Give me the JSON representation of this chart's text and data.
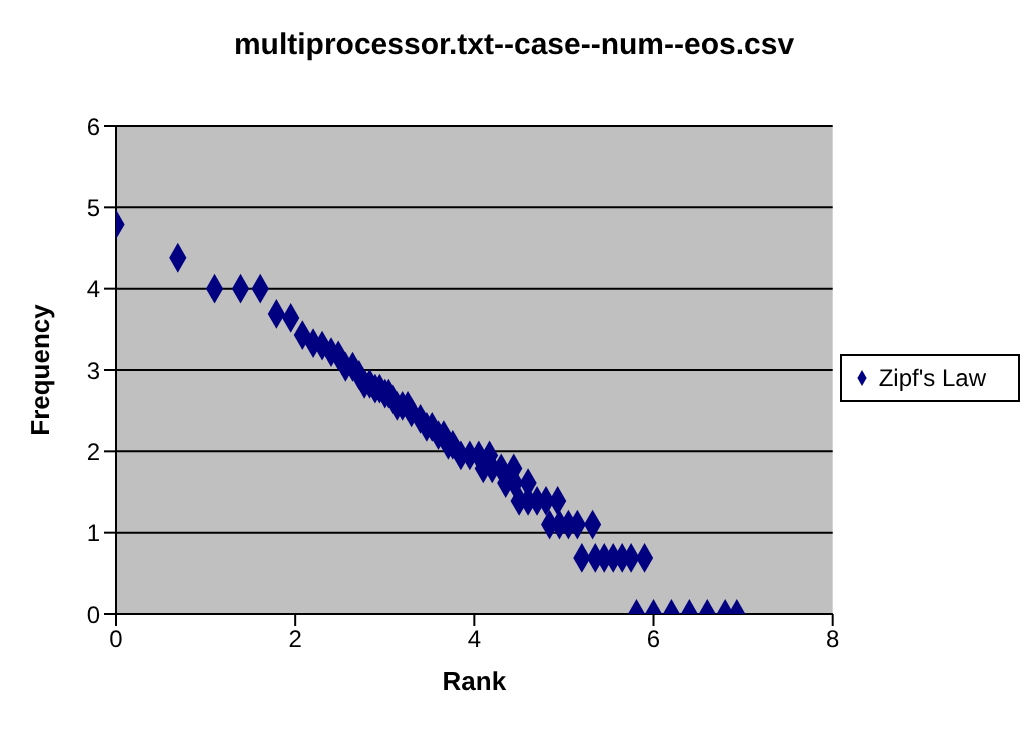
{
  "chart_data": {
    "type": "scatter",
    "title": "multiprocessor.txt--case--num--eos.csv",
    "xlabel": "Rank",
    "ylabel": "Frequency",
    "xlim": [
      0,
      8
    ],
    "xticks": [
      0,
      2,
      4,
      6,
      8
    ],
    "ylim": [
      0,
      6
    ],
    "yticks": [
      0,
      1,
      2,
      3,
      4,
      5,
      6
    ],
    "grid": "y",
    "legend": "right",
    "marker": "diamond",
    "series": [
      {
        "name": "Zipf's Law",
        "color": "#000080",
        "x": [
          0,
          0.69,
          1.1,
          1.39,
          1.61,
          1.79,
          1.95,
          2.08,
          2.2,
          2.3,
          2.4,
          2.48,
          2.56,
          2.64,
          2.71,
          2.77,
          2.83,
          2.89,
          2.94,
          3.0,
          3.04,
          3.09,
          3.14,
          3.2,
          3.26,
          3.3,
          3.4,
          3.47,
          3.53,
          3.6,
          3.66,
          3.71,
          3.76,
          3.85,
          3.95,
          4.05,
          4.17,
          4.1,
          4.2,
          4.3,
          4.44,
          4.35,
          4.45,
          4.6,
          4.5,
          4.6,
          4.7,
          4.8,
          4.93,
          4.84,
          4.95,
          5.05,
          5.15,
          5.32,
          5.2,
          5.35,
          5.45,
          5.55,
          5.65,
          5.75,
          5.9,
          5.81,
          6.0,
          6.2,
          6.4,
          6.6,
          6.8,
          6.93
        ],
        "values": [
          4.79,
          4.38,
          4.0,
          4.0,
          4.0,
          3.69,
          3.64,
          3.43,
          3.33,
          3.3,
          3.22,
          3.18,
          3.04,
          3.04,
          2.94,
          2.83,
          2.83,
          2.77,
          2.77,
          2.71,
          2.71,
          2.64,
          2.56,
          2.56,
          2.56,
          2.48,
          2.4,
          2.3,
          2.3,
          2.2,
          2.2,
          2.08,
          2.08,
          1.95,
          1.95,
          1.95,
          1.95,
          1.79,
          1.79,
          1.79,
          1.79,
          1.61,
          1.61,
          1.61,
          1.39,
          1.39,
          1.39,
          1.39,
          1.39,
          1.1,
          1.1,
          1.1,
          1.1,
          1.1,
          0.69,
          0.69,
          0.69,
          0.69,
          0.69,
          0.69,
          0.69,
          0,
          0,
          0,
          0,
          0,
          0,
          0
        ]
      }
    ]
  }
}
